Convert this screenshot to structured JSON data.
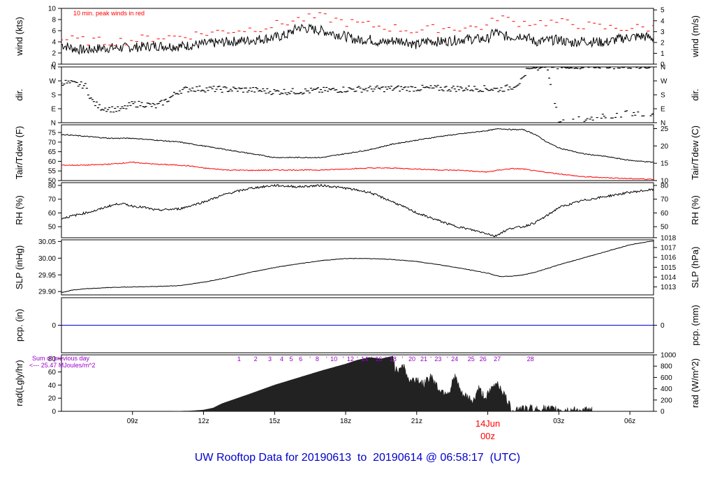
{
  "title": "UW Rooftop Data for 20190613  to  20190614 @ 06:58:17  (UTC)",
  "colors": {
    "title": "#0000cc",
    "gust": "#ff0000",
    "dew": "#ff0000",
    "pcp": "#0000cc",
    "annot": "#9900cc",
    "date": "#ff0000"
  },
  "chart_data": {
    "type": "line",
    "x_axis": {
      "unit": "hours from 06z 13 Jun 2019 (UTC)",
      "range": [
        0,
        25
      ],
      "ticks": [
        {
          "x": 3,
          "label": "09z"
        },
        {
          "x": 6,
          "label": "12z"
        },
        {
          "x": 9,
          "label": "15z"
        },
        {
          "x": 12,
          "label": "18z"
        },
        {
          "x": 15,
          "label": "21z"
        },
        {
          "x": 21,
          "label": "03z"
        },
        {
          "x": 24,
          "label": "06z"
        }
      ],
      "date_marker": {
        "x": 18,
        "date": "14Jun",
        "time": "00z"
      }
    },
    "panels": [
      {
        "id": "wind",
        "ylabel_left": "wind (kts)",
        "ylabel_right": "wind (m/s)",
        "ylim": [
          0,
          10
        ],
        "left_ticks": [
          0,
          2,
          4,
          6,
          8,
          10
        ],
        "right_ticks": [
          0,
          1,
          2,
          3,
          4,
          5
        ],
        "right_scale": 1.944,
        "annotation": "10 min. peak winds in red",
        "series": [
          {
            "kind": "line",
            "color": "#000000",
            "x": [
              0,
              0.5,
              1,
              1.5,
              2,
              3,
              4,
              5,
              6,
              7,
              8,
              9,
              9.5,
              10,
              11,
              12,
              12.5,
              13,
              13.5,
              14,
              14.5,
              15,
              15.5,
              16,
              17,
              18,
              18.3,
              18.6,
              19,
              19.5,
              20,
              20.5,
              21,
              21.5,
              22,
              22.5,
              23,
              23.5,
              24,
              24.5,
              25
            ],
            "y": [
              3.5,
              2.8,
              2.5,
              2.8,
              2.9,
              3.0,
              3.3,
              3.2,
              3.6,
              4.0,
              4.3,
              4.8,
              5.2,
              6.6,
              6.0,
              5.0,
              4.3,
              4.5,
              3.8,
              4.2,
              4.2,
              3.4,
              4.2,
              4.0,
              4.5,
              4.5,
              5.9,
              5.1,
              4.9,
              5.2,
              4.0,
              4.2,
              4.4,
              3.8,
              4.2,
              4.0,
              3.9,
              4.5,
              4.8,
              5.0,
              4.7
            ]
          },
          {
            "kind": "dash",
            "color": "#ff0000",
            "x": [
              0,
              1,
              2,
              3,
              4,
              5,
              6,
              7,
              8,
              9,
              10,
              11,
              12,
              13,
              14,
              15,
              16,
              17,
              18,
              18.5,
              19,
              19.5,
              20,
              21,
              22,
              23,
              24,
              25
            ],
            "y": [
              4.5,
              4.2,
              4.0,
              4.3,
              4.8,
              5.0,
              5.5,
              6.0,
              6.3,
              7.0,
              8.0,
              8.5,
              7.5,
              7.0,
              6.5,
              6.0,
              6.5,
              6.5,
              6.8,
              8.8,
              7.5,
              7.5,
              7.5,
              7.5,
              7.0,
              6.5,
              6.5,
              6.5
            ]
          }
        ]
      },
      {
        "id": "dir",
        "ylabel_left": "dir.",
        "ylabel_right": "dir.",
        "ylim": [
          0,
          360
        ],
        "left_ticks": [
          {
            "v": 0,
            "label": "N"
          },
          {
            "v": 90,
            "label": "E"
          },
          {
            "v": 180,
            "label": "S"
          },
          {
            "v": 270,
            "label": "W"
          },
          {
            "v": 360,
            "label": "N"
          }
        ],
        "right_ticks": [
          {
            "v": 0,
            "label": "N"
          },
          {
            "v": 90,
            "label": "E"
          },
          {
            "v": 180,
            "label": "S"
          },
          {
            "v": 270,
            "label": "W"
          },
          {
            "v": 360,
            "label": "N"
          }
        ],
        "series": [
          {
            "kind": "scatter",
            "color": "#000000",
            "x": [
              0,
              0.5,
              1,
              1.3,
              1.6,
              2,
              2.5,
              3,
              3.5,
              4,
              4.5,
              5,
              5.5,
              6,
              7,
              8,
              9,
              10,
              11,
              12,
              13,
              14,
              15,
              16,
              17,
              18,
              18.5,
              19,
              19.5,
              20,
              20.5,
              21,
              22,
              23,
              24,
              25
            ],
            "y": [
              262,
              252,
              240,
              140,
              100,
              90,
              82,
              120,
              120,
              105,
              150,
              208,
              220,
              218,
              215,
              212,
              200,
              202,
              208,
              215,
              218,
              220,
              222,
              222,
              220,
              220,
              215,
              230,
              275,
              350,
              360,
              10,
              20,
              40,
              60,
              65
            ]
          }
        ]
      },
      {
        "id": "temp",
        "ylabel_left": "Tair/Tdew (F)",
        "ylabel_right": "Tair/Tdew (C)",
        "ylim": [
          50,
          79
        ],
        "left_ticks": [
          50,
          55,
          60,
          65,
          70,
          75
        ],
        "right_ticks": [
          10,
          15,
          20,
          25
        ],
        "right_kind": "F_to_C",
        "series": [
          {
            "kind": "line",
            "color": "#000000",
            "x": [
              0,
              1,
              2,
              3,
              4,
              5,
              6,
              7,
              8,
              9,
              10,
              11,
              12,
              13,
              14,
              15,
              16,
              17,
              18,
              18.5,
              19,
              19.5,
              20,
              20.5,
              21,
              22,
              23,
              24,
              25
            ],
            "y": [
              74,
              73,
              72,
              72,
              71,
              70,
              68,
              66,
              64,
              62,
              62,
              62,
              64,
              66,
              69,
              71,
              73,
              74.5,
              76,
              77,
              76.5,
              76.5,
              74,
              70,
              67,
              64,
              62.5,
              60.5,
              59.5
            ]
          },
          {
            "kind": "line",
            "color": "#ff0000",
            "x": [
              0,
              1,
              2,
              3,
              3.5,
              4,
              5,
              5.5,
              6,
              7,
              8,
              9,
              10,
              11,
              12,
              13,
              14,
              15,
              16,
              17,
              17.5,
              18,
              18.5,
              19,
              19.5,
              20,
              21,
              22,
              23,
              24,
              25
            ],
            "y": [
              58,
              58,
              58.5,
              59.5,
              59,
              58.5,
              58,
              57.5,
              56.5,
              55.5,
              55.3,
              55.5,
              55.5,
              55.5,
              56,
              56.5,
              56.5,
              56,
              55.5,
              55.3,
              54.7,
              54.5,
              55.5,
              56.2,
              56,
              55,
              53.5,
              52,
              51.5,
              51,
              50.7
            ]
          }
        ]
      },
      {
        "id": "rh",
        "ylabel_left": "RH (%)",
        "ylabel_right": "RH (%)",
        "ylim": [
          42,
          82
        ],
        "left_ticks": [
          50,
          60,
          70,
          80
        ],
        "right_ticks": [
          50,
          60,
          70,
          80
        ],
        "series": [
          {
            "kind": "line",
            "color": "#000000",
            "x": [
              0,
              0.5,
              1,
              1.5,
              2,
              2.5,
              3,
              3.5,
              4,
              5,
              6,
              7,
              8,
              9,
              10,
              11,
              12,
              13,
              14,
              15,
              16,
              16.5,
              17,
              17.5,
              18,
              18.3,
              18.6,
              19,
              19.5,
              20,
              20.5,
              21,
              22,
              23,
              24,
              25
            ],
            "y": [
              56,
              58,
              60,
              62,
              65,
              67,
              65,
              64,
              62,
              63,
              68,
              74,
              78,
              80,
              79,
              80,
              78,
              75,
              68,
              60,
              54,
              51,
              49,
              47,
              45,
              43,
              46,
              49,
              50,
              53,
              58,
              64,
              69,
              72,
              75,
              77
            ]
          }
        ]
      },
      {
        "id": "slp",
        "ylabel_left": "SLP (inHg)",
        "ylabel_right": "SLP (hPa)",
        "ylim": [
          29.89,
          30.055
        ],
        "left_ticks": [
          29.9,
          29.95,
          30.0,
          30.05
        ],
        "right_ticks": [
          1013,
          1014,
          1015,
          1016,
          1017,
          1018
        ],
        "right_kind": "inHg_to_hPa",
        "series": [
          {
            "kind": "line",
            "color": "#000000",
            "x": [
              0,
              0.5,
              1,
              2,
              3,
              4,
              5,
              6,
              7,
              8,
              9,
              10,
              11,
              12,
              13,
              14,
              15,
              16,
              17,
              18,
              18.5,
              19,
              19.5,
              20,
              21,
              22,
              23,
              24,
              25
            ],
            "y": [
              29.897,
              29.905,
              29.908,
              29.912,
              29.914,
              29.915,
              29.918,
              29.928,
              29.942,
              29.958,
              29.972,
              29.983,
              29.993,
              29.999,
              29.999,
              29.996,
              29.99,
              29.98,
              29.968,
              29.955,
              29.945,
              29.946,
              29.95,
              29.958,
              29.98,
              30.0,
              30.02,
              30.04,
              30.052
            ]
          }
        ]
      },
      {
        "id": "pcp",
        "ylabel_left": "pcp. (in)",
        "ylabel_right": "pcp. (mm)",
        "ylim": [
          -1,
          1
        ],
        "left_ticks": [
          0
        ],
        "right_ticks": [
          0
        ],
        "series": [
          {
            "kind": "line",
            "color": "#0000cc",
            "x": [
              0,
              25
            ],
            "y": [
              0,
              0
            ]
          }
        ]
      },
      {
        "id": "rad",
        "ylabel_left": "rad(Lgly/hr)",
        "ylabel_right": "rad (W/m^2)",
        "ylim": [
          0,
          86
        ],
        "left_ticks": [
          0,
          20,
          40,
          60,
          80
        ],
        "right_ticks": [
          0,
          200,
          400,
          600,
          800,
          1000
        ],
        "right_scale": 11.63,
        "annot_lines": [
          "Sum of previous day",
          "<--- 25.47 MJoules/m^2"
        ],
        "hour_labels": [
          {
            "x": 7.5,
            "label": "1"
          },
          {
            "x": 8.2,
            "label": "2"
          },
          {
            "x": 8.8,
            "label": "3"
          },
          {
            "x": 9.3,
            "label": "4"
          },
          {
            "x": 9.7,
            "label": "5"
          },
          {
            "x": 10.1,
            "label": "6"
          },
          {
            "x": 10.5,
            "label": "'"
          },
          {
            "x": 10.8,
            "label": "8"
          },
          {
            "x": 11.2,
            "label": "'"
          },
          {
            "x": 11.5,
            "label": "10"
          },
          {
            "x": 11.9,
            "label": "'"
          },
          {
            "x": 12.2,
            "label": "12"
          },
          {
            "x": 12.5,
            "label": "'"
          },
          {
            "x": 12.8,
            "label": "14"
          },
          {
            "x": 13.1,
            "label": "'"
          },
          {
            "x": 13.4,
            "label": "16"
          },
          {
            "x": 13.7,
            "label": "'"
          },
          {
            "x": 14.0,
            "label": "18"
          },
          {
            "x": 14.4,
            "label": "'"
          },
          {
            "x": 14.8,
            "label": "20"
          },
          {
            "x": 15.3,
            "label": "21"
          },
          {
            "x": 15.6,
            "label": "'"
          },
          {
            "x": 15.9,
            "label": "23"
          },
          {
            "x": 16.3,
            "label": "'"
          },
          {
            "x": 16.6,
            "label": "24"
          },
          {
            "x": 17.3,
            "label": "25"
          },
          {
            "x": 17.8,
            "label": "26"
          },
          {
            "x": 18.4,
            "label": "27"
          },
          {
            "x": 19.8,
            "label": "28"
          }
        ],
        "series": [
          {
            "kind": "area",
            "color": "#222222",
            "x": [
              4.7,
              5,
              5.5,
              6,
              6.4,
              6.8,
              7.2,
              8,
              9,
              10,
              11,
              12,
              12.5,
              13,
              13.5,
              14,
              14.1,
              14.4,
              14.7,
              15,
              15.3,
              15.6,
              15.9,
              16.1,
              16.4,
              16.6,
              16.9,
              17.2,
              17.4,
              17.6,
              17.9,
              18.1,
              18.4,
              18.7,
              19,
              19.2,
              19.4,
              19.6,
              19.8,
              20,
              20.3,
              20.7,
              21,
              21.4,
              22,
              22.4
            ],
            "y": [
              0,
              0.2,
              0.7,
              2,
              5,
              12,
              17,
              27,
              40,
              51,
              62,
              72,
              78,
              82,
              80,
              84,
              60,
              72,
              45,
              50,
              40,
              55,
              35,
              30,
              30,
              55,
              25,
              20,
              15,
              35,
              20,
              30,
              45,
              25,
              3,
              3,
              6,
              2,
              5,
              2,
              4,
              2,
              3,
              1.5,
              0.5,
              0
            ]
          }
        ]
      }
    ]
  }
}
